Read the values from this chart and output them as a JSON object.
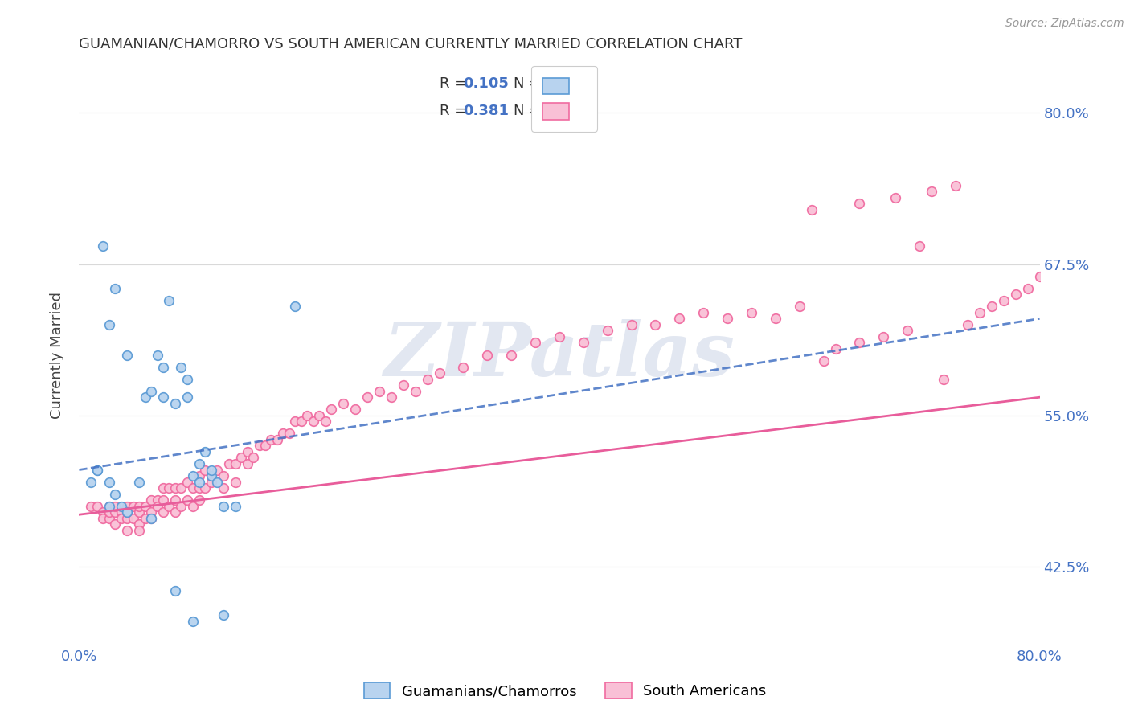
{
  "title": "GUAMANIAN/CHAMORRO VS SOUTH AMERICAN CURRENTLY MARRIED CORRELATION CHART",
  "source": "Source: ZipAtlas.com",
  "ylabel": "Currently Married",
  "xlim": [
    0.0,
    0.8
  ],
  "ylim": [
    0.36,
    0.84
  ],
  "yticks": [
    0.425,
    0.55,
    0.675,
    0.8
  ],
  "ytick_labels": [
    "42.5%",
    "55.0%",
    "67.5%",
    "80.0%"
  ],
  "xticks": [
    0.0,
    0.2,
    0.4,
    0.6,
    0.8
  ],
  "xtick_labels": [
    "0.0%",
    "",
    "",
    "",
    "80.0%"
  ],
  "blue_color": "#5b9bd5",
  "blue_fill": "#b8d3ef",
  "pink_color": "#f06ba0",
  "pink_fill": "#f9c0d6",
  "blue_line_color": "#4472c4",
  "pink_line_color": "#e85d9b",
  "background_color": "#ffffff",
  "grid_color": "#d9d9d9",
  "axis_label_color": "#4472c4",
  "legend_label1": "Guamanians/Chamorros",
  "legend_label2": "South Americans",
  "blue_trendline_start_y": 0.505,
  "blue_trendline_end_y": 0.63,
  "pink_trendline_start_y": 0.468,
  "pink_trendline_end_y": 0.565,
  "blue_scatter_x": [
    0.015,
    0.025,
    0.025,
    0.03,
    0.035,
    0.04,
    0.05,
    0.055,
    0.06,
    0.065,
    0.07,
    0.07,
    0.075,
    0.08,
    0.085,
    0.09,
    0.09,
    0.095,
    0.1,
    0.1,
    0.105,
    0.11,
    0.115,
    0.12,
    0.13,
    0.18,
    0.01,
    0.015,
    0.02,
    0.025,
    0.03,
    0.04,
    0.06,
    0.08,
    0.095,
    0.11,
    0.12
  ],
  "blue_scatter_y": [
    0.505,
    0.495,
    0.475,
    0.485,
    0.475,
    0.47,
    0.495,
    0.565,
    0.57,
    0.6,
    0.565,
    0.59,
    0.645,
    0.56,
    0.59,
    0.565,
    0.58,
    0.5,
    0.51,
    0.495,
    0.52,
    0.5,
    0.495,
    0.475,
    0.475,
    0.64,
    0.495,
    0.505,
    0.69,
    0.625,
    0.655,
    0.6,
    0.465,
    0.405,
    0.38,
    0.505,
    0.385
  ],
  "pink_scatter_x": [
    0.01,
    0.015,
    0.02,
    0.02,
    0.025,
    0.025,
    0.025,
    0.03,
    0.03,
    0.03,
    0.035,
    0.035,
    0.04,
    0.04,
    0.04,
    0.04,
    0.045,
    0.045,
    0.05,
    0.05,
    0.05,
    0.05,
    0.055,
    0.055,
    0.06,
    0.06,
    0.06,
    0.065,
    0.065,
    0.07,
    0.07,
    0.07,
    0.075,
    0.075,
    0.08,
    0.08,
    0.08,
    0.085,
    0.085,
    0.09,
    0.09,
    0.095,
    0.095,
    0.1,
    0.1,
    0.1,
    0.105,
    0.105,
    0.11,
    0.11,
    0.115,
    0.12,
    0.12,
    0.125,
    0.13,
    0.13,
    0.135,
    0.14,
    0.14,
    0.145,
    0.15,
    0.155,
    0.16,
    0.165,
    0.17,
    0.175,
    0.18,
    0.185,
    0.19,
    0.195,
    0.2,
    0.205,
    0.21,
    0.22,
    0.23,
    0.24,
    0.25,
    0.26,
    0.27,
    0.28,
    0.29,
    0.3,
    0.32,
    0.34,
    0.36,
    0.38,
    0.4,
    0.42,
    0.44,
    0.46,
    0.48,
    0.5,
    0.52,
    0.54,
    0.56,
    0.58,
    0.6,
    0.62,
    0.63,
    0.65,
    0.67,
    0.69,
    0.7,
    0.72,
    0.74,
    0.75,
    0.76,
    0.77,
    0.78,
    0.79,
    0.8,
    0.61,
    0.65,
    0.68,
    0.71,
    0.73
  ],
  "pink_scatter_y": [
    0.475,
    0.475,
    0.47,
    0.465,
    0.475,
    0.465,
    0.47,
    0.47,
    0.46,
    0.475,
    0.47,
    0.465,
    0.475,
    0.465,
    0.455,
    0.47,
    0.475,
    0.465,
    0.47,
    0.46,
    0.475,
    0.455,
    0.475,
    0.465,
    0.48,
    0.47,
    0.465,
    0.48,
    0.475,
    0.49,
    0.48,
    0.47,
    0.49,
    0.475,
    0.49,
    0.48,
    0.47,
    0.49,
    0.475,
    0.495,
    0.48,
    0.49,
    0.475,
    0.5,
    0.49,
    0.48,
    0.505,
    0.49,
    0.5,
    0.495,
    0.505,
    0.5,
    0.49,
    0.51,
    0.51,
    0.495,
    0.515,
    0.52,
    0.51,
    0.515,
    0.525,
    0.525,
    0.53,
    0.53,
    0.535,
    0.535,
    0.545,
    0.545,
    0.55,
    0.545,
    0.55,
    0.545,
    0.555,
    0.56,
    0.555,
    0.565,
    0.57,
    0.565,
    0.575,
    0.57,
    0.58,
    0.585,
    0.59,
    0.6,
    0.6,
    0.61,
    0.615,
    0.61,
    0.62,
    0.625,
    0.625,
    0.63,
    0.635,
    0.63,
    0.635,
    0.63,
    0.64,
    0.595,
    0.605,
    0.61,
    0.615,
    0.62,
    0.69,
    0.58,
    0.625,
    0.635,
    0.64,
    0.645,
    0.65,
    0.655,
    0.665,
    0.72,
    0.725,
    0.73,
    0.735,
    0.74
  ],
  "watermark_text": "ZIPatlas",
  "watermark_color": "#d0d8e8",
  "watermark_alpha": 0.6
}
